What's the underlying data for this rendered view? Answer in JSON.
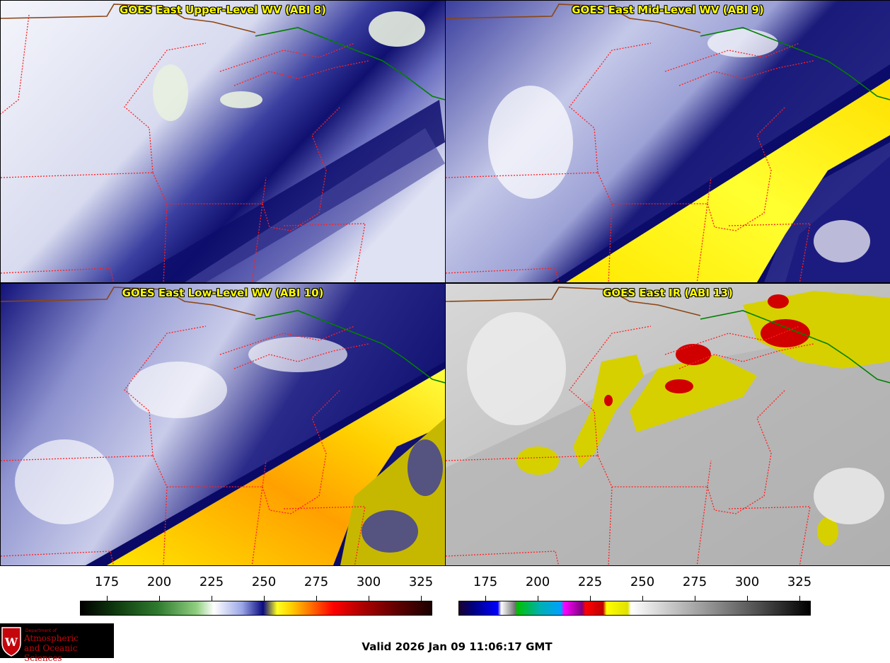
{
  "panels": [
    {
      "id": "upper",
      "title": "GOES East Upper-Level WV (ABI 8)"
    },
    {
      "id": "mid",
      "title": "GOES East Mid-Level WV (ABI 9)"
    },
    {
      "id": "low",
      "title": "GOES East Low-Level WV (ABI 10)"
    },
    {
      "id": "ir",
      "title": "GOES East IR (ABI 13)"
    }
  ],
  "colorbars": {
    "wv": {
      "ticks": [
        "175",
        "200",
        "225",
        "250",
        "275",
        "300",
        "325"
      ]
    },
    "ir": {
      "ticks": [
        "175",
        "200",
        "225",
        "250",
        "275",
        "300",
        "325"
      ]
    }
  },
  "valid_time": "Valid 2026 Jan 09 11:06:17 GMT",
  "logo": {
    "department": "Department of",
    "name_line1": "Atmospheric",
    "name_line2": "and Oceanic Sciences",
    "icon": "uw-crest-icon"
  },
  "colors": {
    "state_borders": "#ff2020",
    "coastline": "#8b4513",
    "country_border": "#008000",
    "title_text": "#ffff00"
  }
}
